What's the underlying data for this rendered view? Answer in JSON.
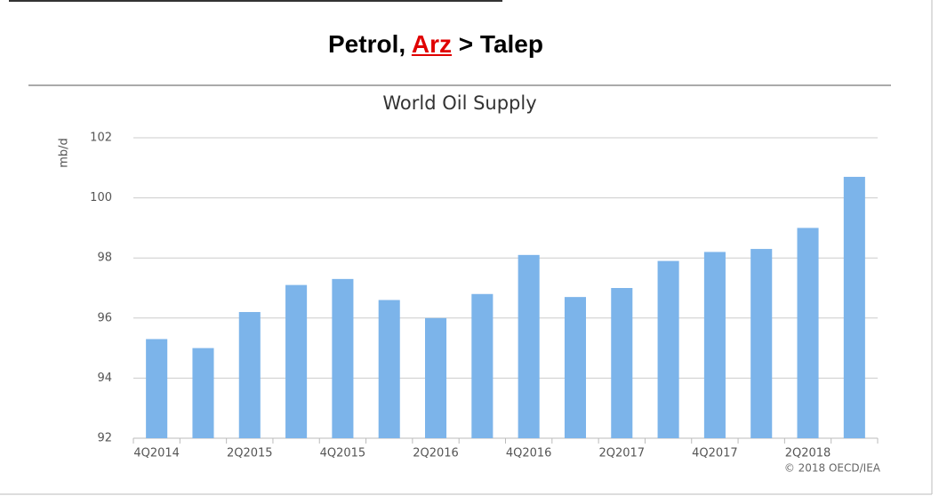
{
  "slide": {
    "title_parts": [
      "Petrol,",
      "Arz",
      "> Talep"
    ]
  },
  "chart_data": {
    "type": "bar",
    "title": "World Oil Supply",
    "y_label": "mb/d",
    "source": "© 2018 OECD/IEA",
    "categories": [
      "4Q2014",
      null,
      "2Q2015",
      null,
      "4Q2015",
      null,
      "2Q2016",
      null,
      "4Q2016",
      null,
      "2Q2017",
      null,
      "4Q2017",
      null,
      "2Q2018",
      null
    ],
    "values": [
      95.3,
      95.0,
      96.2,
      97.1,
      97.3,
      96.6,
      96.0,
      96.8,
      98.1,
      96.7,
      97.0,
      97.9,
      98.2,
      98.3,
      99.0,
      100.7
    ],
    "color": "#7cb4ea",
    "ylim": [
      92,
      102
    ],
    "yticks": [
      92,
      94,
      96,
      98,
      100,
      102
    ],
    "grid": true
  }
}
